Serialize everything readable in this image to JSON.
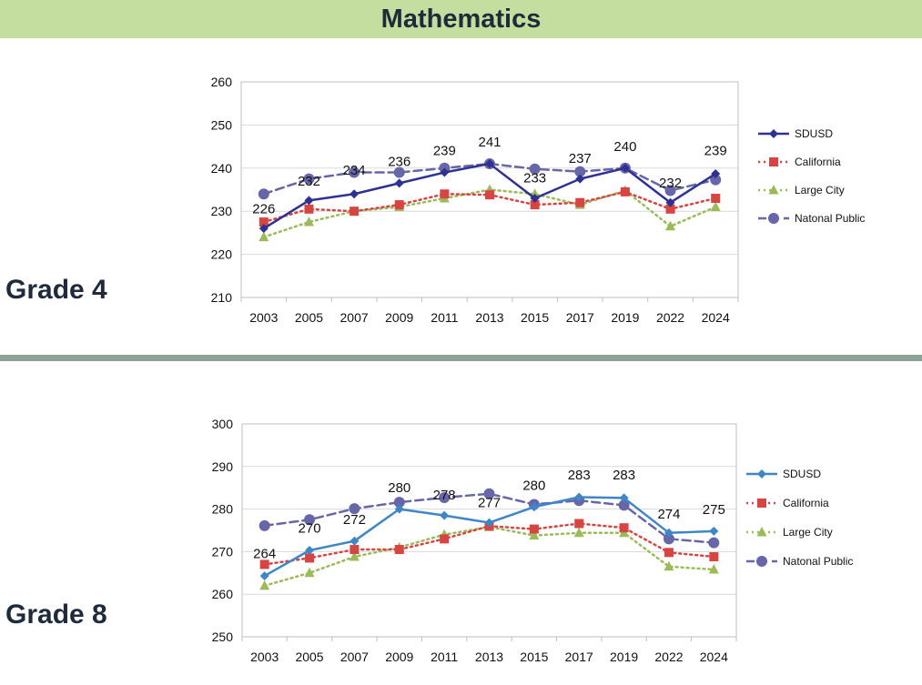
{
  "page": {
    "title": "Mathematics",
    "grade4_label": "Grade 4",
    "grade8_label": "Grade 8"
  },
  "colors": {
    "title_bar": "#c4dea0",
    "divider": "#8ea295"
  },
  "chart_data": [
    {
      "type": "line",
      "name": "Grade 4",
      "categories": [
        "2003",
        "2005",
        "2007",
        "2009",
        "2011",
        "2013",
        "2015",
        "2017",
        "2019",
        "2022",
        "2024"
      ],
      "ylim": [
        210,
        260
      ],
      "yticks": [
        210,
        220,
        230,
        240,
        250,
        260
      ],
      "grid": true,
      "legend": "right",
      "series": [
        {
          "name": "SDUSD",
          "color": "#2e3192",
          "style": "solid",
          "marker": "diamond",
          "values": [
            226,
            232.5,
            234,
            236.5,
            239,
            241,
            233,
            237.5,
            240,
            232,
            238.7
          ]
        },
        {
          "name": "California",
          "color": "#d64541",
          "style": "dotted",
          "marker": "square",
          "values": [
            227.5,
            230.5,
            230,
            231.5,
            234,
            233.8,
            231.5,
            232,
            234.5,
            230.5,
            233
          ]
        },
        {
          "name": "Large City",
          "color": "#9bbb59",
          "style": "dotted",
          "marker": "triangle",
          "values": [
            224,
            227.5,
            230,
            231,
            233,
            235,
            234,
            231.5,
            234.8,
            226.5,
            231
          ]
        },
        {
          "name": "Natonal Public",
          "color": "#6666a8",
          "style": "dashed",
          "marker": "circle",
          "values": [
            234,
            237.5,
            239,
            239,
            240,
            241,
            239.8,
            239.2,
            240,
            234.8,
            237.3
          ]
        }
      ],
      "data_labels": [
        {
          "category": "2003",
          "text": "226",
          "y": 229.5
        },
        {
          "category": "2005",
          "text": "232",
          "y": 236
        },
        {
          "category": "2007",
          "text": "234",
          "y": 238.5
        },
        {
          "category": "2009",
          "text": "236",
          "y": 240.5
        },
        {
          "category": "2011",
          "text": "239",
          "y": 243
        },
        {
          "category": "2013",
          "text": "241",
          "y": 245
        },
        {
          "category": "2015",
          "text": "233",
          "y": 236.7
        },
        {
          "category": "2017",
          "text": "237",
          "y": 241.2
        },
        {
          "category": "2019",
          "text": "240",
          "y": 244
        },
        {
          "category": "2022",
          "text": "232",
          "y": 235.5
        },
        {
          "category": "2024",
          "text": "239",
          "y": 243
        }
      ]
    },
    {
      "type": "line",
      "name": "Grade 8",
      "categories": [
        "2003",
        "2005",
        "2007",
        "2009",
        "2011",
        "2013",
        "2015",
        "2017",
        "2019",
        "2022",
        "2024"
      ],
      "ylim": [
        250,
        300
      ],
      "yticks": [
        250,
        260,
        270,
        280,
        290,
        300
      ],
      "grid": true,
      "legend": "right",
      "series": [
        {
          "name": "SDUSD",
          "color": "#3f86c6",
          "style": "solid",
          "marker": "diamond",
          "values": [
            264.3,
            270.3,
            272.5,
            280,
            278.5,
            276.8,
            280.5,
            282.8,
            282.6,
            274.4,
            274.8
          ]
        },
        {
          "name": "California",
          "color": "#d64541",
          "style": "dotted",
          "marker": "square",
          "values": [
            267,
            268.5,
            270.5,
            270.5,
            273,
            276,
            275.3,
            276.6,
            275.6,
            269.8,
            268.8
          ]
        },
        {
          "name": "Large City",
          "color": "#9bbb59",
          "style": "dotted",
          "marker": "triangle",
          "values": [
            262,
            265,
            268.8,
            271,
            274,
            275.8,
            273.8,
            274.4,
            274.4,
            266.5,
            265.8
          ]
        },
        {
          "name": "Natonal Public",
          "color": "#6666a8",
          "style": "dashed",
          "marker": "circle",
          "values": [
            276.1,
            277.5,
            280.1,
            281.6,
            282.7,
            283.6,
            281.1,
            282,
            280.9,
            273,
            272.1
          ]
        }
      ],
      "data_labels": [
        {
          "category": "2003",
          "text": "264",
          "y": 268.5
        },
        {
          "category": "2005",
          "text": "270",
          "y": 274.5
        },
        {
          "category": "2007",
          "text": "272",
          "y": 276.5
        },
        {
          "category": "2009",
          "text": "280",
          "y": 284
        },
        {
          "category": "2011",
          "text": "278",
          "y": 282.3
        },
        {
          "category": "2013",
          "text": "277",
          "y": 280.5
        },
        {
          "category": "2015",
          "text": "280",
          "y": 284.5
        },
        {
          "category": "2017",
          "text": "283",
          "y": 287
        },
        {
          "category": "2019",
          "text": "283",
          "y": 287
        },
        {
          "category": "2022",
          "text": "274",
          "y": 277.8
        },
        {
          "category": "2024",
          "text": "275",
          "y": 278.8
        }
      ]
    }
  ]
}
